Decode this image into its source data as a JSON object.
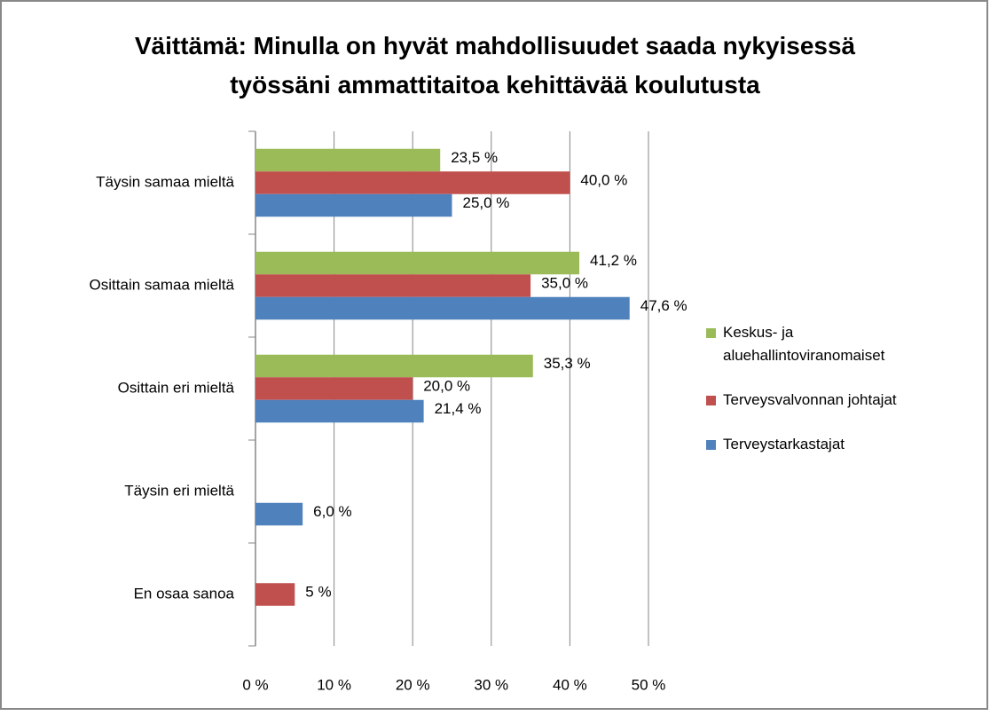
{
  "chart_data": {
    "type": "bar",
    "orientation": "horizontal",
    "title": "Väittämä: Minulla on hyvät mahdollisuudet saada nykyisessä työssäni ammattitaitoa kehittävää koulutusta",
    "categories": [
      "Täysin samaa mieltä",
      "Osittain samaa mieltä",
      "Osittain eri mieltä",
      "Täysin eri mieltä",
      "En osaa sanoa"
    ],
    "series": [
      {
        "name": "Keskus- ja aluehallintoviranomaiset",
        "color": "#9bbb59",
        "values": [
          23.5,
          41.2,
          35.3,
          null,
          null
        ],
        "value_labels": [
          "23,5 %",
          "41,2 %",
          "35,3 %",
          null,
          null
        ]
      },
      {
        "name": "Terveysvalvonnan johtajat",
        "color": "#c0504d",
        "values": [
          40.0,
          35.0,
          20.0,
          null,
          5
        ],
        "value_labels": [
          "40,0 %",
          "35,0 %",
          "20,0 %",
          null,
          "5 %"
        ]
      },
      {
        "name": "Terveystarkastajat",
        "color": "#4f81bd",
        "values": [
          25.0,
          47.6,
          21.4,
          6.0,
          null
        ],
        "value_labels": [
          "25,0 %",
          "47,6 %",
          "21,4 %",
          "6,0 %",
          null
        ]
      }
    ],
    "xlim": [
      0,
      50
    ],
    "xticks": [
      {
        "value": 0,
        "label": "0 %"
      },
      {
        "value": 10,
        "label": "10 %"
      },
      {
        "value": 20,
        "label": "20 %"
      },
      {
        "value": 30,
        "label": "30 %"
      },
      {
        "value": 40,
        "label": "40 %"
      },
      {
        "value": 50,
        "label": "50 %"
      }
    ],
    "grid": true,
    "legend": "right"
  }
}
